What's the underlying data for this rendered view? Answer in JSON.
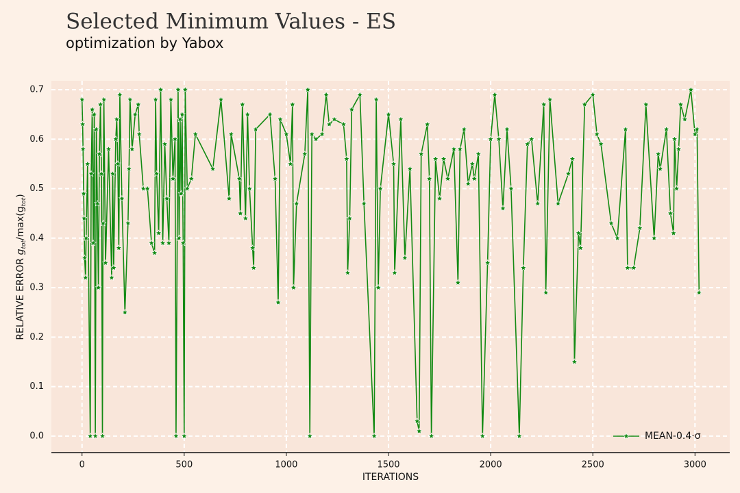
{
  "chart_data": {
    "type": "line",
    "title": "Selected Minimum Values - ES",
    "subtitle": "optimization by Yabox",
    "x_label": "ITERATIONS",
    "y_label_parts": [
      "RELATIVE ERROR ",
      "g",
      "tot",
      "/max(g",
      "tot",
      ")"
    ],
    "xlim": [
      -150,
      3170
    ],
    "ylim": [
      -0.032,
      0.718
    ],
    "xticks": [
      0,
      500,
      1000,
      1500,
      2000,
      2500,
      3000
    ],
    "yticks": [
      {
        "value": 0,
        "label": "0.0"
      },
      0.1,
      0.2,
      0.3,
      0.4,
      0.5,
      0.6,
      0.7
    ],
    "grid": true,
    "legend": "lower right",
    "series": [
      {
        "name": "MEAN-0.4·σ",
        "color": "#138a13",
        "x": [
          0,
          3,
          5,
          8,
          10,
          13,
          17,
          20,
          27,
          40,
          45,
          50,
          55,
          60,
          65,
          70,
          75,
          80,
          85,
          90,
          95,
          100,
          103,
          107,
          115,
          130,
          145,
          150,
          155,
          165,
          170,
          175,
          180,
          185,
          195,
          210,
          225,
          230,
          235,
          245,
          260,
          275,
          280,
          300,
          320,
          340,
          355,
          360,
          365,
          375,
          385,
          395,
          405,
          415,
          425,
          435,
          445,
          455,
          460,
          470,
          475,
          480,
          485,
          490,
          495,
          500,
          505,
          515,
          535,
          555,
          640,
          680,
          720,
          730,
          770,
          775,
          785,
          800,
          810,
          820,
          835,
          840,
          850,
          920,
          945,
          960,
          970,
          1000,
          1020,
          1030,
          1035,
          1050,
          1090,
          1105,
          1115,
          1125,
          1145,
          1175,
          1195,
          1210,
          1235,
          1280,
          1295,
          1300,
          1310,
          1320,
          1360,
          1380,
          1430,
          1440,
          1450,
          1460,
          1500,
          1525,
          1530,
          1560,
          1580,
          1605,
          1640,
          1650,
          1660,
          1690,
          1700,
          1710,
          1730,
          1750,
          1770,
          1790,
          1820,
          1840,
          1850,
          1870,
          1890,
          1910,
          1920,
          1940,
          1960,
          1985,
          2000,
          2020,
          2040,
          2060,
          2080,
          2100,
          2140,
          2160,
          2180,
          2200,
          2230,
          2260,
          2270,
          2290,
          2330,
          2380,
          2400,
          2410,
          2430,
          2440,
          2460,
          2500,
          2520,
          2540,
          2590,
          2620,
          2660,
          2670,
          2700,
          2730,
          2760,
          2800,
          2820,
          2830,
          2860,
          2880,
          2895,
          2900,
          2910,
          2920,
          2930,
          2950,
          2980,
          3000,
          3010,
          3020
        ],
        "values": [
          0.68,
          0.63,
          0.58,
          0.49,
          0.44,
          0.36,
          0.32,
          0.4,
          0.55,
          0.0,
          0.53,
          0.66,
          0.39,
          0.65,
          0.0,
          0.62,
          0.47,
          0.3,
          0.57,
          0.67,
          0.53,
          0.0,
          0.43,
          0.68,
          0.35,
          0.58,
          0.32,
          0.53,
          0.34,
          0.6,
          0.64,
          0.55,
          0.38,
          0.69,
          0.48,
          0.25,
          0.43,
          0.54,
          0.68,
          0.58,
          0.65,
          0.67,
          0.61,
          0.5,
          0.5,
          0.39,
          0.37,
          0.68,
          0.53,
          0.41,
          0.7,
          0.39,
          0.59,
          0.48,
          0.39,
          0.68,
          0.52,
          0.6,
          0.0,
          0.7,
          0.4,
          0.64,
          0.49,
          0.65,
          0.39,
          0.0,
          0.7,
          0.5,
          0.52,
          0.61,
          0.54,
          0.68,
          0.48,
          0.61,
          0.52,
          0.45,
          0.67,
          0.44,
          0.65,
          0.5,
          0.38,
          0.34,
          0.62,
          0.65,
          0.52,
          0.27,
          0.64,
          0.61,
          0.55,
          0.67,
          0.3,
          0.47,
          0.57,
          0.7,
          0.0,
          0.61,
          0.6,
          0.61,
          0.69,
          0.63,
          0.64,
          0.63,
          0.56,
          0.33,
          0.44,
          0.66,
          0.69,
          0.47,
          0.0,
          0.68,
          0.3,
          0.5,
          0.65,
          0.55,
          0.33,
          0.64,
          0.36,
          0.54,
          0.03,
          0.01,
          0.57,
          0.63,
          0.52,
          0.0,
          0.56,
          0.48,
          0.56,
          0.52,
          0.58,
          0.31,
          0.58,
          0.62,
          0.51,
          0.55,
          0.52,
          0.57,
          0.0,
          0.35,
          0.6,
          0.69,
          0.6,
          0.46,
          0.62,
          0.5,
          0.0,
          0.34,
          0.59,
          0.6,
          0.47,
          0.67,
          0.29,
          0.68,
          0.47,
          0.53,
          0.56,
          0.15,
          0.41,
          0.38,
          0.67,
          0.69,
          0.61,
          0.59,
          0.43,
          0.4,
          0.62,
          0.34,
          0.34,
          0.42,
          0.67,
          0.4,
          0.57,
          0.54,
          0.62,
          0.45,
          0.41,
          0.6,
          0.5,
          0.58,
          0.67,
          0.64,
          0.7,
          0.61,
          0.62,
          0.29
        ]
      }
    ]
  }
}
